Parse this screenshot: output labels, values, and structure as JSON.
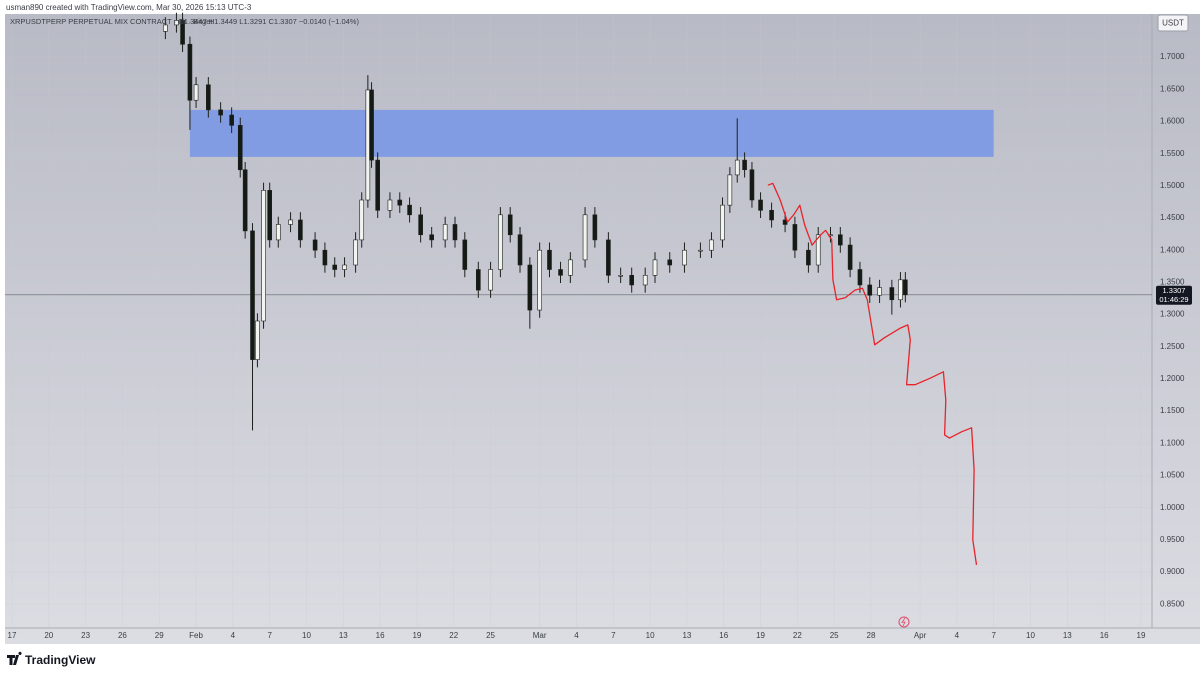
{
  "header": {
    "creator": "usman890 created with TradingView.com, Mar 30, 2026 15:13 UTC-3",
    "brand": "TradingView"
  },
  "chart_data": {
    "type": "candlestick",
    "symbol": "XRPUSDTPERP PERPETUAL MIX CONTRACT · 4h · Bitget",
    "ohlc_legend": "O1.3447 H1.3449 L1.3291 C1.3307 −0.0140 (−1.04%)",
    "currency": "USDT",
    "last_price": 1.3307,
    "countdown": "01:46:29",
    "up_color": "#f2f4f0",
    "down_color": "#141a14",
    "wick_color": "#1c211c",
    "grid": true,
    "x": [
      12.5,
      13.4,
      13.9,
      14.5,
      15.0,
      16.0,
      17.0,
      17.9,
      18.6,
      19.0,
      19.6,
      20.0,
      20.5,
      21.0,
      21.7,
      22.7,
      23.5,
      24.7,
      25.5,
      26.3,
      27.1,
      28.0,
      28.5,
      29.0,
      29.3,
      29.8,
      30.8,
      31.6,
      32.4,
      33.3,
      34.2,
      35.3,
      36.1,
      36.9,
      38.0,
      39.0,
      39.8,
      40.6,
      41.4,
      42.2,
      43.0,
      43.8,
      44.7,
      45.5,
      46.7,
      47.5,
      48.6,
      49.6,
      50.5,
      51.6,
      52.4,
      53.6,
      54.8,
      56.1,
      57.0,
      57.9,
      58.5,
      59.1,
      59.7,
      60.3,
      61.0,
      61.9,
      63.0,
      63.8,
      64.9,
      65.7,
      66.7,
      67.5,
      68.3,
      69.1,
      69.9,
      70.7,
      71.7,
      72.4,
      72.8
    ],
    "open": [
      1.74,
      1.75,
      1.757,
      1.72,
      1.633,
      1.657,
      1.618,
      1.61,
      1.594,
      1.525,
      1.43,
      1.23,
      1.29,
      1.493,
      1.416,
      1.44,
      1.447,
      1.416,
      1.4,
      1.377,
      1.37,
      1.377,
      1.416,
      1.478,
      1.649,
      1.54,
      1.462,
      1.478,
      1.47,
      1.455,
      1.424,
      1.416,
      1.44,
      1.416,
      1.37,
      1.338,
      1.37,
      1.455,
      1.424,
      1.377,
      1.307,
      1.4,
      1.37,
      1.361,
      1.385,
      1.455,
      1.416,
      1.361,
      1.361,
      1.346,
      1.361,
      1.385,
      1.377,
      1.4,
      1.4,
      1.416,
      1.47,
      1.517,
      1.54,
      1.525,
      1.478,
      1.462,
      1.447,
      1.44,
      1.4,
      1.377,
      1.424,
      1.424,
      1.408,
      1.37,
      1.346,
      1.33,
      1.342,
      1.323,
      1.354
    ],
    "high": [
      1.762,
      1.769,
      1.769,
      1.732,
      1.669,
      1.669,
      1.63,
      1.622,
      1.606,
      1.537,
      1.442,
      1.302,
      1.505,
      1.505,
      1.452,
      1.459,
      1.459,
      1.428,
      1.412,
      1.389,
      1.389,
      1.428,
      1.49,
      1.672,
      1.661,
      1.552,
      1.49,
      1.49,
      1.482,
      1.467,
      1.436,
      1.452,
      1.452,
      1.428,
      1.382,
      1.382,
      1.467,
      1.467,
      1.436,
      1.389,
      1.412,
      1.412,
      1.382,
      1.397,
      1.467,
      1.467,
      1.428,
      1.373,
      1.373,
      1.373,
      1.397,
      1.397,
      1.412,
      1.412,
      1.428,
      1.482,
      1.529,
      1.605,
      1.552,
      1.537,
      1.49,
      1.474,
      1.459,
      1.452,
      1.412,
      1.436,
      1.436,
      1.436,
      1.42,
      1.382,
      1.358,
      1.354,
      1.354,
      1.366,
      1.366
    ],
    "low": [
      1.728,
      1.738,
      1.708,
      1.587,
      1.621,
      1.606,
      1.598,
      1.582,
      1.513,
      1.418,
      1.12,
      1.218,
      1.278,
      1.404,
      1.404,
      1.428,
      1.404,
      1.388,
      1.365,
      1.358,
      1.358,
      1.365,
      1.404,
      1.466,
      1.528,
      1.45,
      1.45,
      1.458,
      1.443,
      1.412,
      1.404,
      1.404,
      1.404,
      1.358,
      1.326,
      1.326,
      1.358,
      1.412,
      1.365,
      1.278,
      1.295,
      1.358,
      1.349,
      1.349,
      1.373,
      1.404,
      1.349,
      1.349,
      1.334,
      1.334,
      1.349,
      1.365,
      1.365,
      1.388,
      1.388,
      1.404,
      1.458,
      1.505,
      1.513,
      1.466,
      1.45,
      1.435,
      1.428,
      1.388,
      1.365,
      1.365,
      1.412,
      1.396,
      1.358,
      1.334,
      1.318,
      1.318,
      1.3,
      1.311,
      1.319
    ],
    "close": [
      1.75,
      1.757,
      1.72,
      1.633,
      1.657,
      1.618,
      1.61,
      1.594,
      1.525,
      1.43,
      1.23,
      1.29,
      1.493,
      1.416,
      1.44,
      1.447,
      1.416,
      1.4,
      1.377,
      1.37,
      1.377,
      1.416,
      1.478,
      1.649,
      1.54,
      1.462,
      1.478,
      1.47,
      1.455,
      1.424,
      1.416,
      1.44,
      1.416,
      1.37,
      1.338,
      1.37,
      1.455,
      1.424,
      1.377,
      1.307,
      1.4,
      1.37,
      1.361,
      1.385,
      1.455,
      1.416,
      1.361,
      1.361,
      1.346,
      1.361,
      1.385,
      1.377,
      1.4,
      1.4,
      1.416,
      1.47,
      1.517,
      1.54,
      1.525,
      1.478,
      1.462,
      1.447,
      1.44,
      1.4,
      1.377,
      1.424,
      1.424,
      1.408,
      1.37,
      1.346,
      1.33,
      1.342,
      1.323,
      1.354,
      1.3307
    ],
    "zone": {
      "color": "#7b98e6",
      "x": [
        14.5,
        80
      ],
      "y": [
        1.545,
        1.618
      ]
    },
    "projection": {
      "color": "#e8232a",
      "x": [
        61.6,
        62.0,
        62.6,
        63.2,
        63.7,
        64.2,
        64.6,
        65.2,
        65.9,
        66.3,
        66.8,
        66.9,
        67.2,
        67.9,
        68.7,
        69.3,
        69.7,
        70.3,
        71.1,
        72.4,
        73.0,
        73.2,
        72.9,
        73.6,
        74.8,
        75.9,
        76.1,
        76.0,
        76.4,
        77.4,
        78.2,
        78.4,
        78.3,
        78.6
      ],
      "y": [
        1.501,
        1.504,
        1.478,
        1.444,
        1.455,
        1.47,
        1.439,
        1.408,
        1.424,
        1.431,
        1.416,
        1.354,
        1.323,
        1.326,
        1.338,
        1.341,
        1.323,
        1.253,
        1.264,
        1.279,
        1.284,
        1.261,
        1.191,
        1.191,
        1.201,
        1.211,
        1.167,
        1.113,
        1.108,
        1.118,
        1.124,
        1.059,
        0.95,
        0.911
      ]
    },
    "xlim": [
      -0.57,
      92.9
    ],
    "ylim": [
      0.813,
      1.767
    ],
    "xticks": [
      {
        "value": 0,
        "label": "17"
      },
      {
        "value": 3,
        "label": "20"
      },
      {
        "value": 6,
        "label": "23"
      },
      {
        "value": 9,
        "label": "26"
      },
      {
        "value": 12,
        "label": "29"
      },
      {
        "value": 15,
        "label": "Feb"
      },
      {
        "value": 18,
        "label": "4"
      },
      {
        "value": 21,
        "label": "7"
      },
      {
        "value": 24,
        "label": "10"
      },
      {
        "value": 27,
        "label": "13"
      },
      {
        "value": 30,
        "label": "16"
      },
      {
        "value": 33,
        "label": "19"
      },
      {
        "value": 36,
        "label": "22"
      },
      {
        "value": 39,
        "label": "25"
      },
      {
        "value": 43,
        "label": "Mar"
      },
      {
        "value": 46,
        "label": "4"
      },
      {
        "value": 49,
        "label": "7"
      },
      {
        "value": 52,
        "label": "10"
      },
      {
        "value": 55,
        "label": "13"
      },
      {
        "value": 58,
        "label": "16"
      },
      {
        "value": 61,
        "label": "19"
      },
      {
        "value": 64,
        "label": "22"
      },
      {
        "value": 67,
        "label": "25"
      },
      {
        "value": 70,
        "label": "28"
      },
      {
        "value": 74,
        "label": "Apr"
      },
      {
        "value": 77,
        "label": "4"
      },
      {
        "value": 80,
        "label": "7"
      },
      {
        "value": 83,
        "label": "10"
      },
      {
        "value": 86,
        "label": "13"
      },
      {
        "value": 89,
        "label": "16"
      },
      {
        "value": 92,
        "label": "19"
      }
    ],
    "yticks": [
      {
        "value": 0.85,
        "label": "0.8500"
      },
      {
        "value": 0.9,
        "label": "0.9000"
      },
      {
        "value": 0.95,
        "label": "0.9500"
      },
      {
        "value": 1.0,
        "label": "1.0000"
      },
      {
        "value": 1.05,
        "label": "1.0500"
      },
      {
        "value": 1.1,
        "label": "1.1000"
      },
      {
        "value": 1.15,
        "label": "1.1500"
      },
      {
        "value": 1.2,
        "label": "1.2000"
      },
      {
        "value": 1.25,
        "label": "1.2500"
      },
      {
        "value": 1.3,
        "label": "1.3000"
      },
      {
        "value": 1.35,
        "label": "1.3500"
      },
      {
        "value": 1.4,
        "label": "1.4000"
      },
      {
        "value": 1.45,
        "label": "1.4500"
      },
      {
        "value": 1.5,
        "label": "1.5000"
      },
      {
        "value": 1.55,
        "label": "1.5500"
      },
      {
        "value": 1.6,
        "label": "1.6000"
      },
      {
        "value": 1.65,
        "label": "1.6500"
      },
      {
        "value": 1.7,
        "label": "1.7000"
      }
    ]
  }
}
